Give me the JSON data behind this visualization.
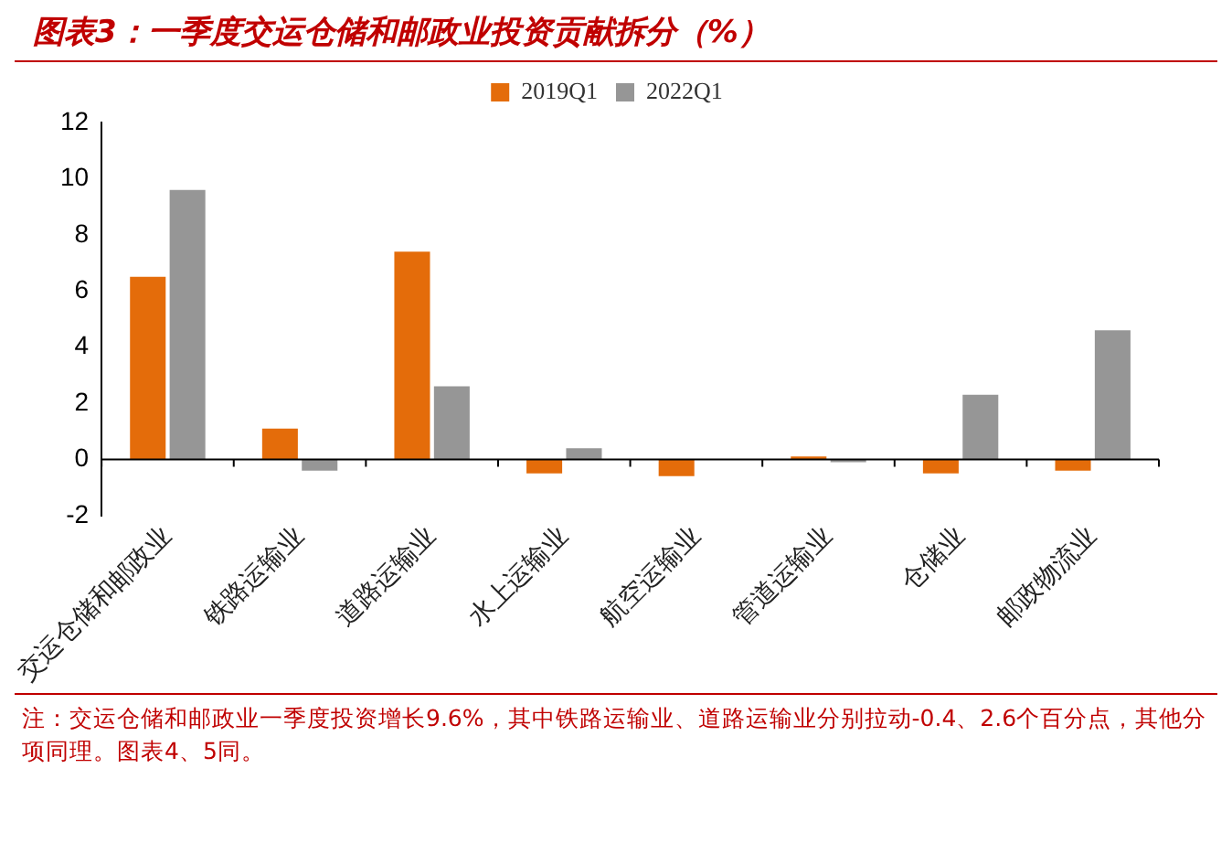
{
  "chart_data": {
    "type": "bar",
    "title": "图表3：一季度交运仓储和邮政业投资贡献拆分（%）",
    "categories": [
      "交运仓储和邮政业",
      "铁路运输业",
      "道路运输业",
      "水上运输业",
      "航空运输业",
      "管道运输业",
      "仓储业",
      "邮政物流业"
    ],
    "series": [
      {
        "name": "2019Q1",
        "color": "#e46c0a",
        "values": [
          6.5,
          1.1,
          7.4,
          -0.5,
          -0.6,
          0.1,
          -0.5,
          -0.4
        ]
      },
      {
        "name": "2022Q1",
        "color": "#969696",
        "values": [
          9.6,
          -0.4,
          2.6,
          0.4,
          0.0,
          -0.1,
          2.3,
          4.6
        ]
      }
    ],
    "ylim": [
      -2,
      12
    ],
    "yticks": [
      -2,
      0,
      2,
      4,
      6,
      8,
      10,
      12
    ],
    "grid": false,
    "legend": "top",
    "annotations": [
      "注：交运仓储和邮政业一季度投资增长9.6%，其中铁路运输业、道路运输业分别拉动-0.4、2.6个百分点，其他分项同理。图表4、5同。"
    ]
  }
}
